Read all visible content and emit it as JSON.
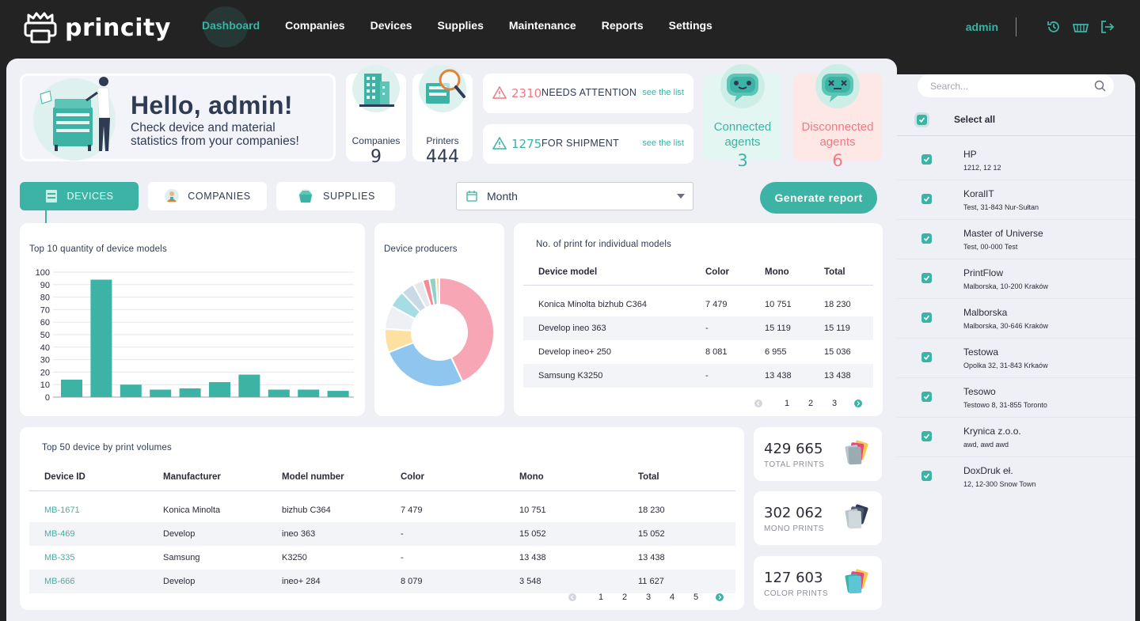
{
  "brand": {
    "name": "princity"
  },
  "nav": {
    "items": [
      "Dashboard",
      "Companies",
      "Devices",
      "Supplies",
      "Maintenance",
      "Reports",
      "Settings"
    ],
    "active": "Dashboard"
  },
  "user": {
    "name": "admin",
    "icons": [
      "history-icon",
      "basket-icon",
      "logout-icon"
    ]
  },
  "hello": {
    "title": "Hello, admin!",
    "subtitle_line1": "Check device and material",
    "subtitle_line2": "statistics from your companies!"
  },
  "stats": {
    "companies": {
      "label": "Companies",
      "value": "9"
    },
    "printers": {
      "label": "Printers",
      "value": "444"
    }
  },
  "alerts": [
    {
      "count": "2310",
      "text": "NEEDS ATTENTION",
      "link": "see the list",
      "color": "#f07a84"
    },
    {
      "count": "1275",
      "text": "FOR SHIPMENT",
      "link": "see the list",
      "color": "#3cb3a4"
    }
  ],
  "agents": {
    "connected": {
      "label_line1": "Connected",
      "label_line2": "agents",
      "value": "3",
      "color": "#3cb3a4"
    },
    "disconnected": {
      "label_line1": "Disconnected",
      "label_line2": "agents",
      "value": "6",
      "color": "#f07a84"
    }
  },
  "tabs": [
    {
      "label": "DEVICES",
      "active": true
    },
    {
      "label": "COMPANIES",
      "active": false
    },
    {
      "label": "SUPPLIES",
      "active": false
    }
  ],
  "period_select": {
    "value": "Month"
  },
  "generate_button": "Generate report",
  "colors": {
    "accent": "#3cb3a4",
    "alert": "#f07a84",
    "panel": "#eef0f6",
    "topbar": "#232323"
  },
  "chart_top10": {
    "title": "Top 10 quantity of device models"
  },
  "chart_producers": {
    "title": "Device producers"
  },
  "chart_data": [
    {
      "type": "bar",
      "title": "Top 10 quantity of device models",
      "categories": [
        "",
        "",
        "",
        "",
        "",
        "",
        "",
        "",
        "",
        ""
      ],
      "values": [
        14,
        94,
        10,
        6,
        7,
        12,
        18,
        6,
        6,
        5
      ],
      "yticks": [
        0,
        10,
        20,
        30,
        40,
        50,
        60,
        70,
        80,
        90,
        100
      ],
      "ylim": [
        0,
        100
      ],
      "grid": true,
      "color": "#3cb3a4"
    },
    {
      "type": "pie",
      "title": "Device producers",
      "donut": true,
      "values": [
        43,
        26,
        7,
        7,
        5,
        4,
        3,
        2,
        2,
        1
      ],
      "colors": [
        "#f7a6b5",
        "#8ec6ef",
        "#fde1a0",
        "#eef0f4",
        "#a6dde2",
        "#c9d9e5",
        "#e6e8ec",
        "#f58c95",
        "#8fd2c5",
        "#fbd79d"
      ]
    }
  ],
  "models_table": {
    "title": "No. of print for individual models",
    "headers": [
      "Device model",
      "Color",
      "Mono",
      "Total"
    ],
    "rows": [
      [
        "Konica Minolta bizhub C364",
        "7 479",
        "10 751",
        "18 230"
      ],
      [
        "Develop ineo 363",
        "-",
        "15 119",
        "15 119"
      ],
      [
        "Develop ineo+ 250",
        "8 081",
        "6 955",
        "15 036"
      ],
      [
        "Samsung K3250",
        "-",
        "13 438",
        "13 438"
      ]
    ],
    "pages": [
      "1",
      "2",
      "3"
    ]
  },
  "top_devices": {
    "title": "Top 50 device by print volumes",
    "headers": [
      "Device ID",
      "Manufacturer",
      "Model number",
      "Color",
      "Mono",
      "Total"
    ],
    "rows": [
      [
        "MB-1671",
        "Konica Minolta",
        "bizhub C364",
        "7 479",
        "10 751",
        "18 230"
      ],
      [
        "MB-469",
        "Develop",
        "ineo 363",
        "-",
        "15 052",
        "15 052"
      ],
      [
        "MB-335",
        "Samsung",
        "K3250",
        "-",
        "13 438",
        "13 438"
      ],
      [
        "MB-666",
        "Develop",
        "ineo+ 284",
        "8 079",
        "3 548",
        "11 627"
      ]
    ],
    "pages": [
      "1",
      "2",
      "3",
      "4",
      "5"
    ]
  },
  "totals": [
    {
      "value": "429 665",
      "label": "TOTAL PRINTS"
    },
    {
      "value": "302 062",
      "label": "MONO PRINTS"
    },
    {
      "value": "127 603",
      "label": "COLOR PRINTS"
    }
  ],
  "sidebar": {
    "search_placeholder": "Search...",
    "select_all": "Select all",
    "companies": [
      {
        "name": "HP",
        "address": "1212, 12 12"
      },
      {
        "name": "KoralIT",
        "address": "Test, 31-843 Nur-Sułtan"
      },
      {
        "name": "Master of Universe",
        "address": "Test, 00-000 Test"
      },
      {
        "name": "PrintFlow",
        "address": "Malborska, 10-200 Kraków"
      },
      {
        "name": "Malborska",
        "address": "Malborska, 30-646 Kraków"
      },
      {
        "name": "Testowa",
        "address": "Opolka 32, 31-843 Krkaów"
      },
      {
        "name": "Tesowo",
        "address": "Testowo 8, 31-855 Toronto"
      },
      {
        "name": "Krynica z.o.o.",
        "address": "awd, awd awd"
      },
      {
        "name": "DoxDruk eł.",
        "address": "12, 12-300 Snow Town"
      }
    ]
  }
}
